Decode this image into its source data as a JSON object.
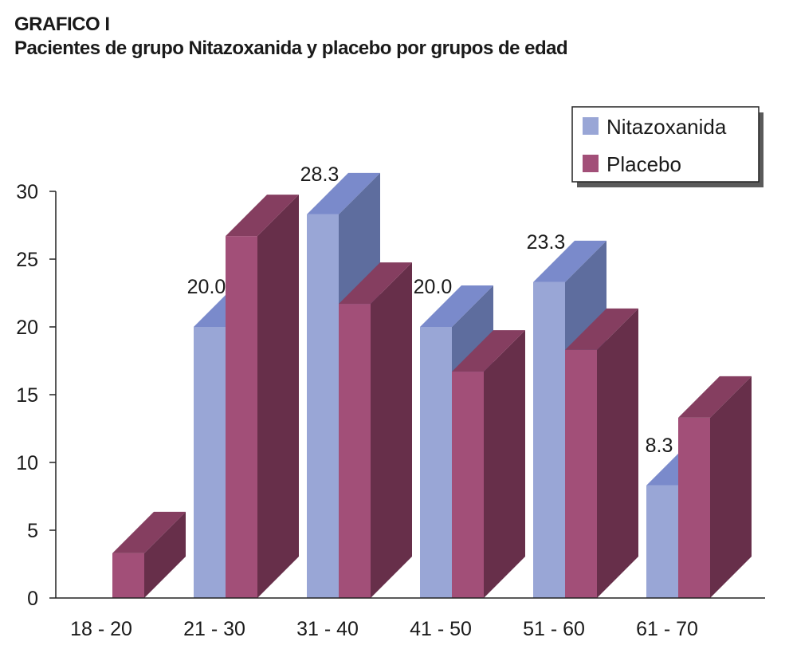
{
  "header": {
    "label": "GRAFICO I",
    "title": "Pacientes de grupo Nitazoxanida y placebo por grupos de edad"
  },
  "chart_data": {
    "type": "bar",
    "categories": [
      "18 - 20",
      "21 - 30",
      "31 - 40",
      "41 - 50",
      "51 - 60",
      "61 - 70"
    ],
    "series": [
      {
        "name": "Nitazoxanida",
        "values": [
          0,
          20.0,
          28.3,
          20.0,
          23.3,
          8.3
        ],
        "data_labels": [
          "",
          "20.0",
          "28.3",
          "20.0",
          "23.3",
          "8.3"
        ]
      },
      {
        "name": "Placebo",
        "values": [
          3.3,
          26.7,
          21.7,
          16.7,
          18.3,
          13.3
        ]
      }
    ],
    "ylim": [
      0,
      30
    ],
    "yticks": [
      "0",
      "5",
      "10",
      "15",
      "20",
      "25",
      "30"
    ],
    "xlabel": "",
    "ylabel": "",
    "legend_position": "top-right",
    "grid": false,
    "colors": {
      "nitazoxanida_front": "#99a6d6",
      "nitazoxanida_top": "#7a8acb",
      "nitazoxanida_side": "#5e6d9e",
      "placebo_front": "#a24f78",
      "placebo_top": "#853e60",
      "placebo_side": "#672f4a"
    }
  }
}
